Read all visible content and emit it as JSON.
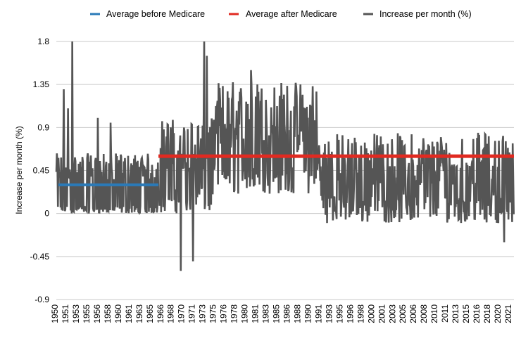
{
  "chart_data": {
    "type": "line",
    "xlabel": "",
    "ylabel": "Increase per month (%)",
    "ylim": [
      -0.9,
      1.8
    ],
    "y_ticks": [
      "1.8",
      "1.35",
      "0.9",
      "0.45",
      "0",
      "-0.45",
      "-0.9"
    ],
    "x_tick_labels": [
      "1950",
      "1951",
      "1953",
      "1955",
      "1956",
      "1958",
      "1960",
      "1961",
      "1963",
      "1965",
      "1966",
      "1968",
      "1970",
      "1971",
      "1973",
      "1975",
      "1976",
      "1978",
      "1980",
      "1981",
      "1983",
      "1985",
      "1986",
      "1988",
      "1990",
      "1991",
      "1993",
      "1995",
      "1996",
      "1998",
      "2000",
      "2001",
      "2003",
      "2005",
      "2006",
      "2008",
      "2010",
      "2011",
      "2013",
      "2015",
      "2016",
      "2018",
      "2020",
      "2021"
    ],
    "grid": true,
    "legend_position": "top",
    "series": [
      {
        "name": "Average before Medicare",
        "kind": "average",
        "color": "#2a7ab8",
        "year_range": [
          1950,
          1966
        ],
        "value": 0.3
      },
      {
        "name": "Average after Medicare",
        "kind": "average",
        "color": "#e12a21",
        "year_range": [
          1966,
          2021.7
        ],
        "value": 0.6
      },
      {
        "name": "Increase per month (%)",
        "kind": "monthly",
        "color": "#555555",
        "monthly_values": [
          {
            "period": "1950-1966",
            "value_range": [
              0,
              0.6
            ],
            "peaks": [
              {
                "year": 1951.2,
                "value": 1.3
              },
              {
                "year": 1951.8,
                "value": 1.1
              },
              {
                "year": 1952.5,
                "value": 1.8
              },
              {
                "year": 1956.5,
                "value": 1.0
              },
              {
                "year": 1958.5,
                "value": 0.95
              }
            ]
          },
          {
            "period": "1966-1975",
            "value_range": [
              0,
              1.1
            ],
            "peaks": [
              {
                "year": 1973.2,
                "value": 1.8
              },
              {
                "year": 1973.6,
                "value": 1.65
              }
            ],
            "troughs": [
              {
                "year": 1969.5,
                "value": -0.6
              },
              {
                "year": 1971.4,
                "value": -0.5
              }
            ]
          },
          {
            "period": "1975-1991",
            "value_range": [
              0.2,
              1.5
            ],
            "peaks": [
              {
                "year": 1980.5,
                "value": 1.5
              },
              {
                "year": 1981.5,
                "value": 1.35
              }
            ]
          },
          {
            "period": "1991-2021",
            "value_range": [
              -0.3,
              0.9
            ],
            "troughs": [
              {
                "year": 2020.2,
                "value": -0.3
              }
            ]
          }
        ]
      }
    ]
  }
}
